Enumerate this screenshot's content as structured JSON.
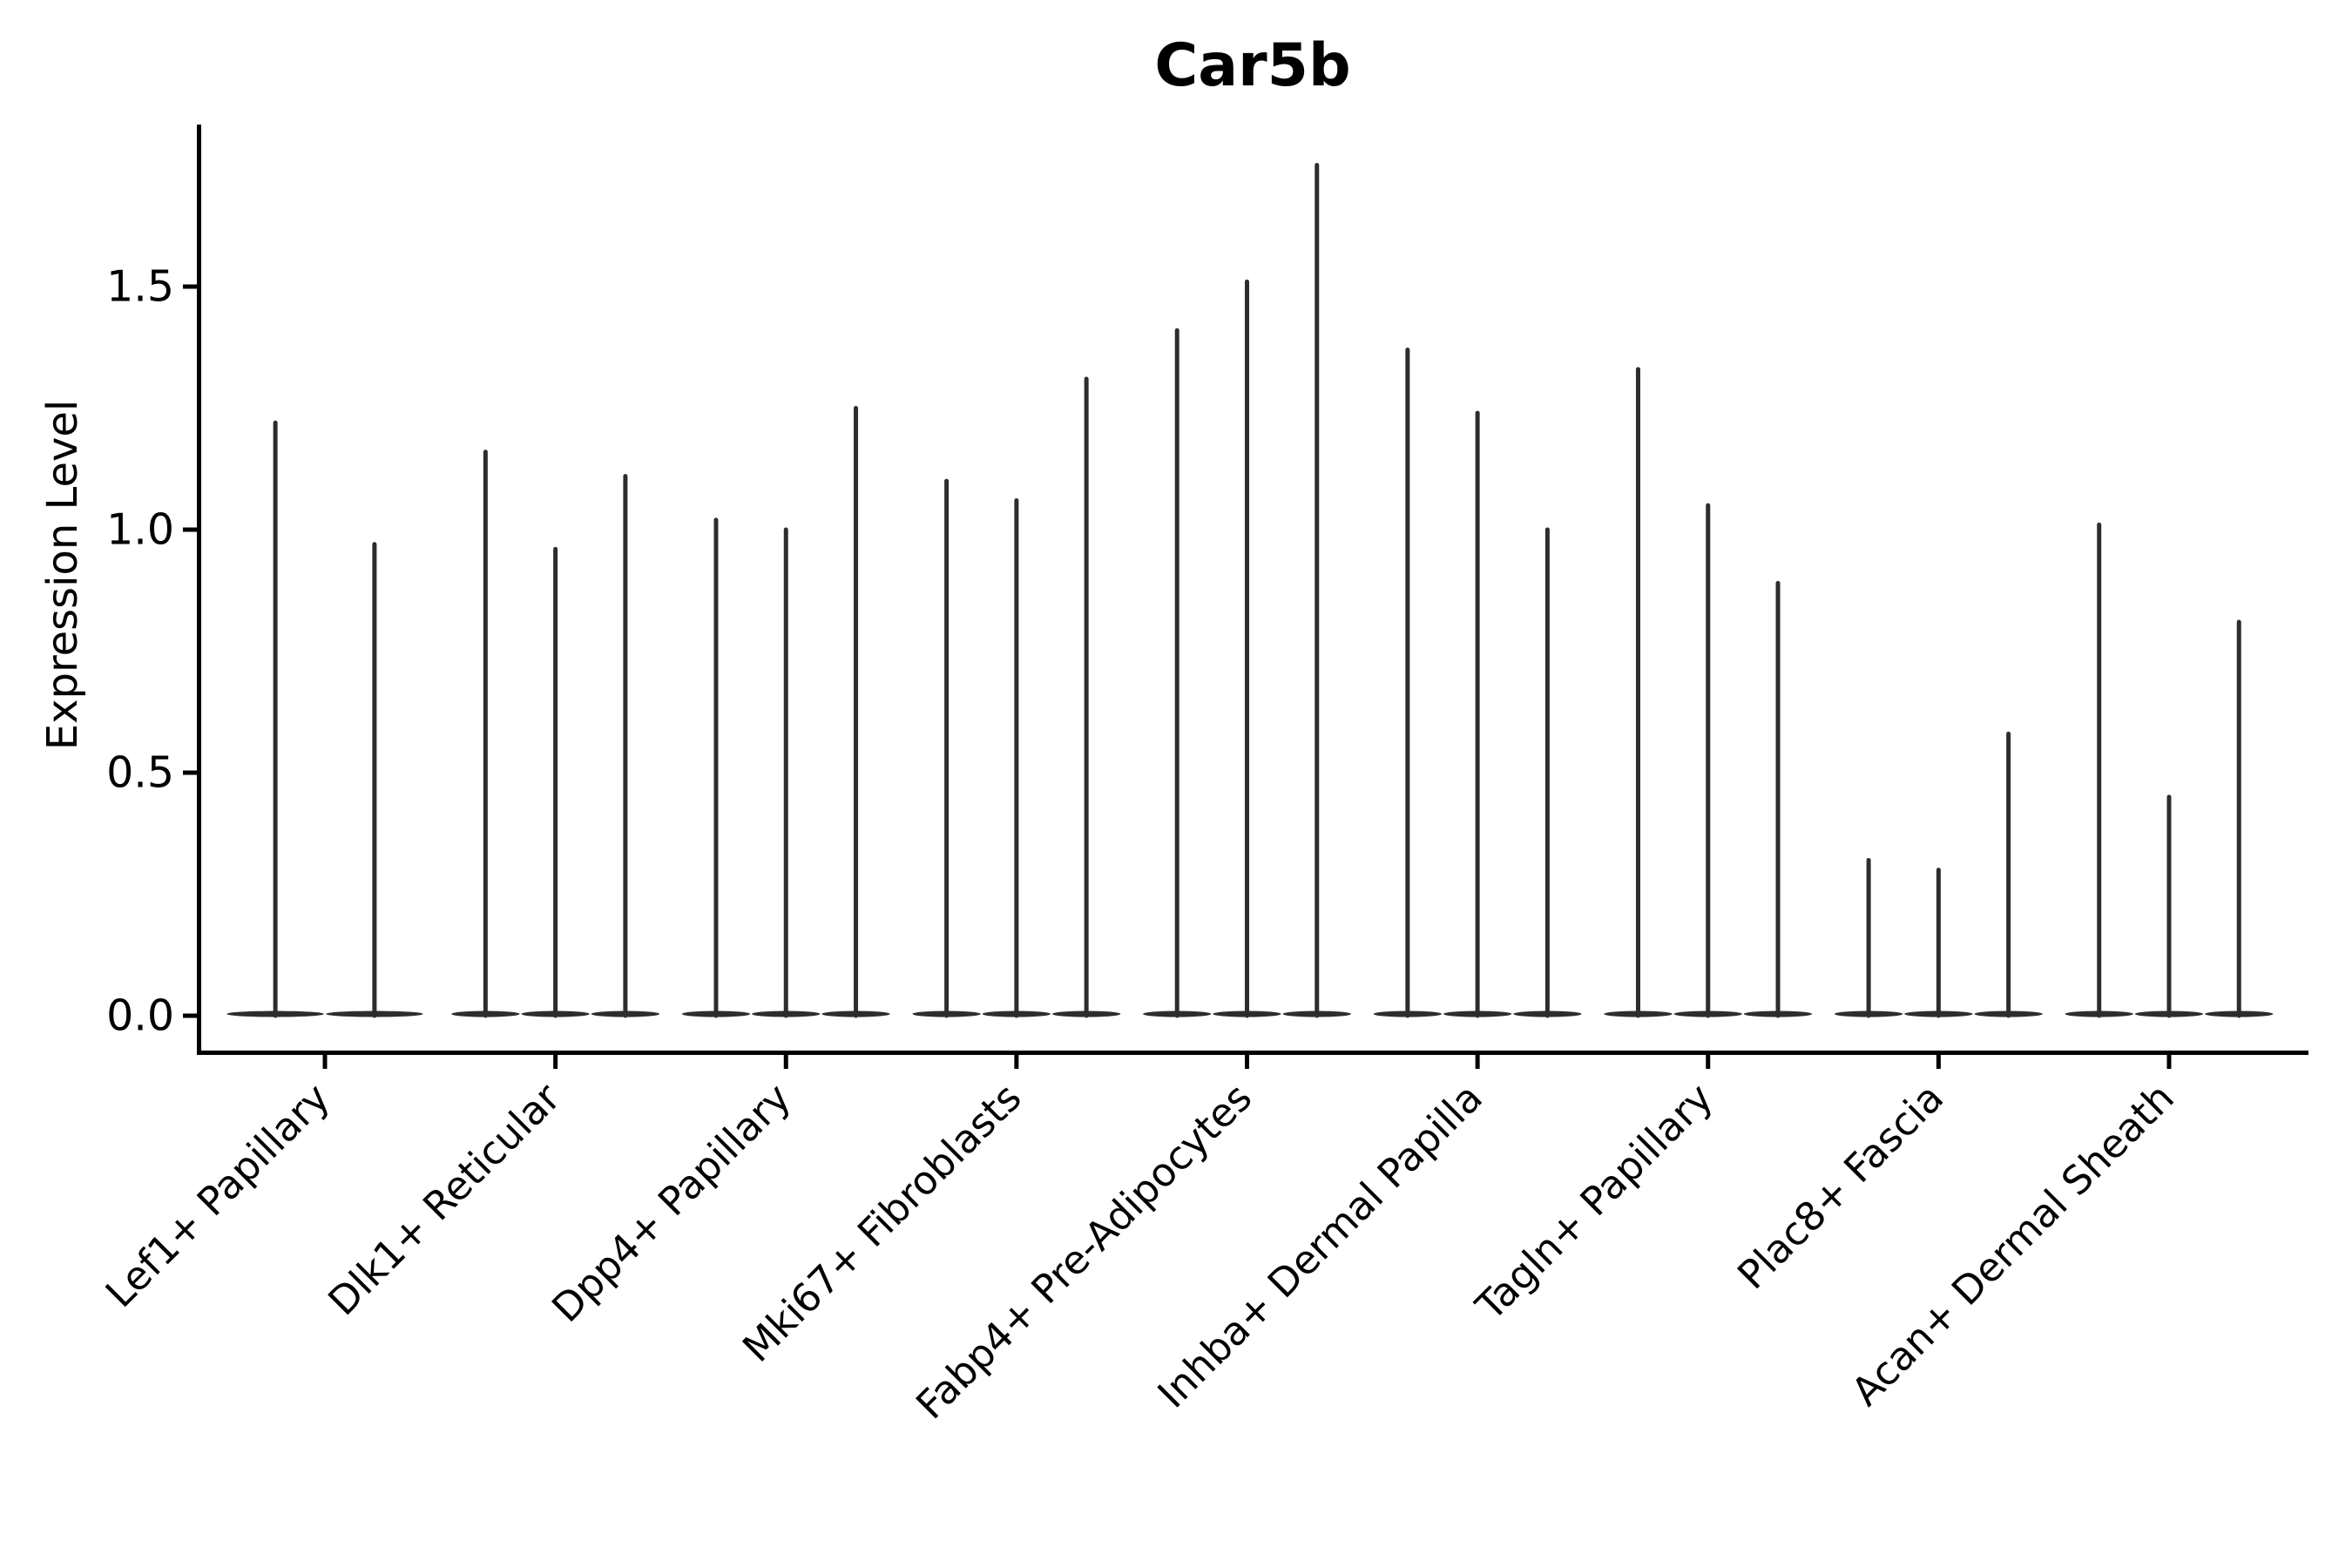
{
  "chart_data": {
    "type": "violin",
    "title": "Car5b",
    "ylabel": "Expression Level",
    "xlabel": "",
    "grid": false,
    "legend": null,
    "x_tick_rotation_deg": 45,
    "ylim": [
      -0.08,
      1.83
    ],
    "y_ticks": [
      {
        "value": 0.0,
        "label": "0.0"
      },
      {
        "value": 0.5,
        "label": "0.5"
      },
      {
        "value": 1.0,
        "label": "1.0"
      },
      {
        "value": 1.5,
        "label": "1.5"
      }
    ],
    "groups": [
      {
        "category": "Lef1+ Papillary",
        "violin_maxima": [
          1.22,
          0.97
        ]
      },
      {
        "category": "Dlk1+ Reticular",
        "violin_maxima": [
          1.16,
          0.96,
          1.11
        ]
      },
      {
        "category": "Dpp4+ Papillary",
        "violin_maxima": [
          1.02,
          1.0,
          1.25
        ]
      },
      {
        "category": "Mki67+ Fibroblasts",
        "violin_maxima": [
          1.1,
          1.06,
          1.31
        ]
      },
      {
        "category": "Fabp4+ Pre-Adipocytes",
        "violin_maxima": [
          1.41,
          1.51,
          1.75
        ]
      },
      {
        "category": "Inhba+ Dermal Papilla",
        "violin_maxima": [
          1.37,
          1.24,
          1.0
        ]
      },
      {
        "category": "Tagln+ Papillary",
        "violin_maxima": [
          1.33,
          1.05,
          0.89
        ]
      },
      {
        "category": "Plac8+ Fascia",
        "violin_maxima": [
          0.32,
          0.3,
          0.58
        ]
      },
      {
        "category": "Acan+ Dermal Sheath",
        "violin_maxima": [
          1.01,
          0.45,
          0.81
        ]
      }
    ],
    "colors": {
      "violin": "#2d2d2d",
      "axis": "#000000",
      "text": "#000000",
      "background": "#ffffff"
    }
  }
}
